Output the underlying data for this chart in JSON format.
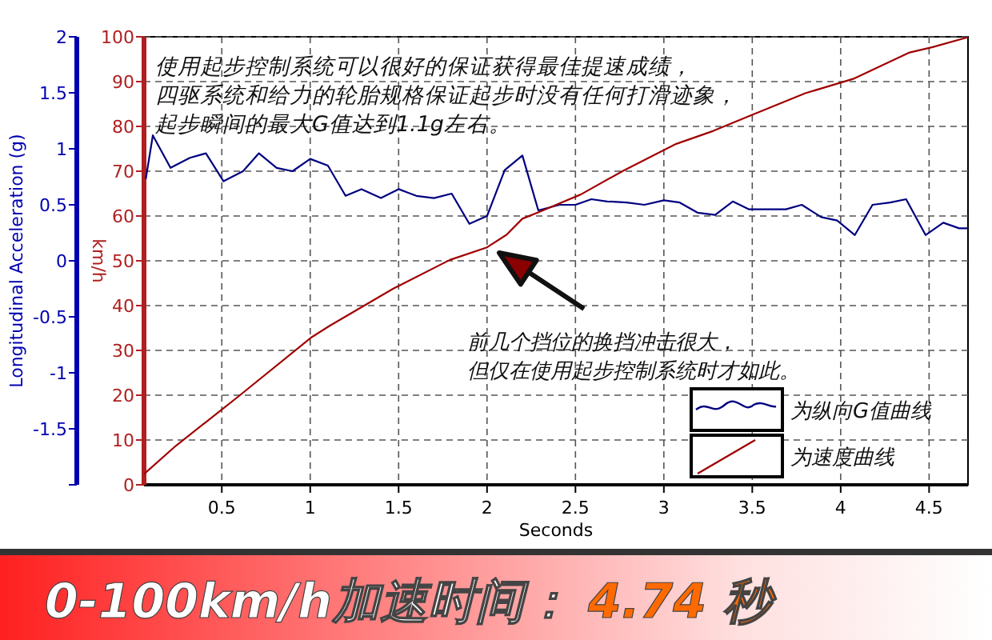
{
  "chart_data": {
    "type": "line",
    "title": "0-100km/h加速时间：",
    "subtitle": "4.74 秒",
    "xlabel": "Seconds",
    "ylabel": "Longitudinal Acceleration (g)",
    "y2label": "km/h",
    "xlim": [
      0.06,
      4.72
    ],
    "xticks": [
      0.5,
      1,
      1.5,
      2,
      2.5,
      3,
      3.5,
      4,
      4.5
    ],
    "ylim": [
      -2,
      2
    ],
    "yticks": [
      {
        "value": -2,
        "label": null
      },
      -1.5,
      -1,
      -0.5,
      0,
      0.5,
      1,
      1.5,
      2
    ],
    "y2lim": [
      0,
      100
    ],
    "y2ticks": [
      0,
      10,
      20,
      30,
      40,
      50,
      60,
      70,
      80,
      90,
      100
    ],
    "grid": true,
    "legend": "bottom right",
    "marker": "none",
    "line_style": "solid",
    "series": [
      {
        "name": "为纵向G值曲线",
        "color": "#000080",
        "x": [
          0.07,
          0.11,
          0.21,
          0.32,
          0.41,
          0.51,
          0.62,
          0.71,
          0.81,
          0.9,
          1.0,
          1.1,
          1.2,
          1.29,
          1.4,
          1.5,
          1.6,
          1.7,
          1.8,
          1.9,
          2.0,
          2.1,
          2.2,
          2.29,
          2.41,
          2.5,
          2.59,
          2.68,
          2.79,
          2.89,
          3.0,
          3.09,
          3.19,
          3.29,
          3.39,
          3.48,
          3.6,
          3.69,
          3.78,
          3.89,
          3.98,
          4.08,
          4.18,
          4.28,
          4.37,
          4.48,
          4.58,
          4.67,
          4.72
        ],
        "values": [
          0.73,
          1.12,
          0.83,
          0.92,
          0.96,
          0.71,
          0.8,
          0.96,
          0.83,
          0.8,
          0.91,
          0.85,
          0.58,
          0.64,
          0.56,
          0.64,
          0.58,
          0.56,
          0.6,
          0.33,
          0.4,
          0.81,
          0.94,
          0.45,
          0.5,
          0.5,
          0.55,
          0.53,
          0.52,
          0.5,
          0.54,
          0.52,
          0.43,
          0.41,
          0.53,
          0.46,
          0.46,
          0.46,
          0.5,
          0.39,
          0.36,
          0.23,
          0.5,
          0.52,
          0.55,
          0.23,
          0.34,
          0.29,
          0.29
        ]
      },
      {
        "name": "为速度曲线",
        "color": "#a00000",
        "axis": "y2",
        "x": [
          0.06,
          0.24,
          0.59,
          1.01,
          1.11,
          1.47,
          1.79,
          2.0,
          2.11,
          2.2,
          2.3,
          2.53,
          2.77,
          3.07,
          3.28,
          3.5,
          3.8,
          4.07,
          4.39,
          4.52,
          4.72
        ],
        "values": [
          2.4,
          8.7,
          19.6,
          33,
          35.5,
          43.8,
          50.2,
          53,
          55.8,
          59.4,
          61,
          64.8,
          70.1,
          76.1,
          79,
          82.6,
          87.4,
          90.6,
          96.5,
          97.7,
          99.9
        ]
      }
    ],
    "annotations": [
      "使用起步控制系统可以很好的保证获得最佳提速成绩，",
      "四驱系统和给力的轮胎规格保证起步时没有任何打滑迹象，",
      "起步瞬间的最大G值达到1.1g左右。",
      "前几个挡位的换挡冲击很大，",
      "但仅在使用起步控制系统时才如此。"
    ]
  }
}
